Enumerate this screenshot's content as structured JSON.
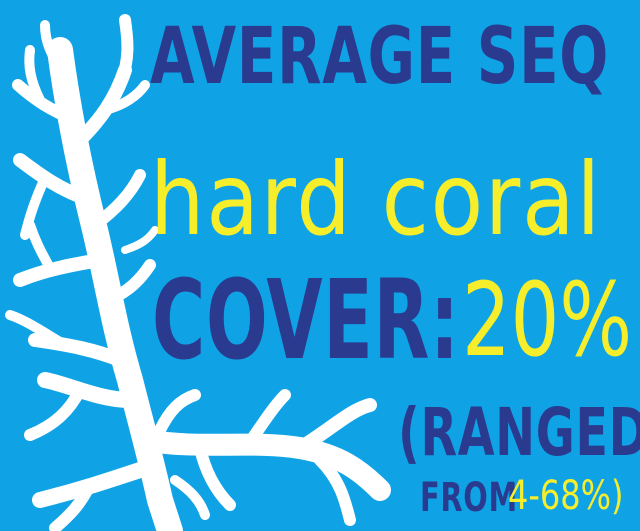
{
  "headline": {
    "line1": "AVERAGE SEQ",
    "line2": "hard coral",
    "line3_label": "COVER:",
    "line3_value": "20%",
    "line4": "(RANGED",
    "line5_label": "FROM",
    "line5_value": "4-68%)"
  },
  "colors": {
    "background": "#0fa3e6",
    "navy": "#2a3a8f",
    "yellow": "#f7ee2b",
    "coral": "#ffffff"
  },
  "icons": {
    "coral": "coral-branch-icon"
  }
}
